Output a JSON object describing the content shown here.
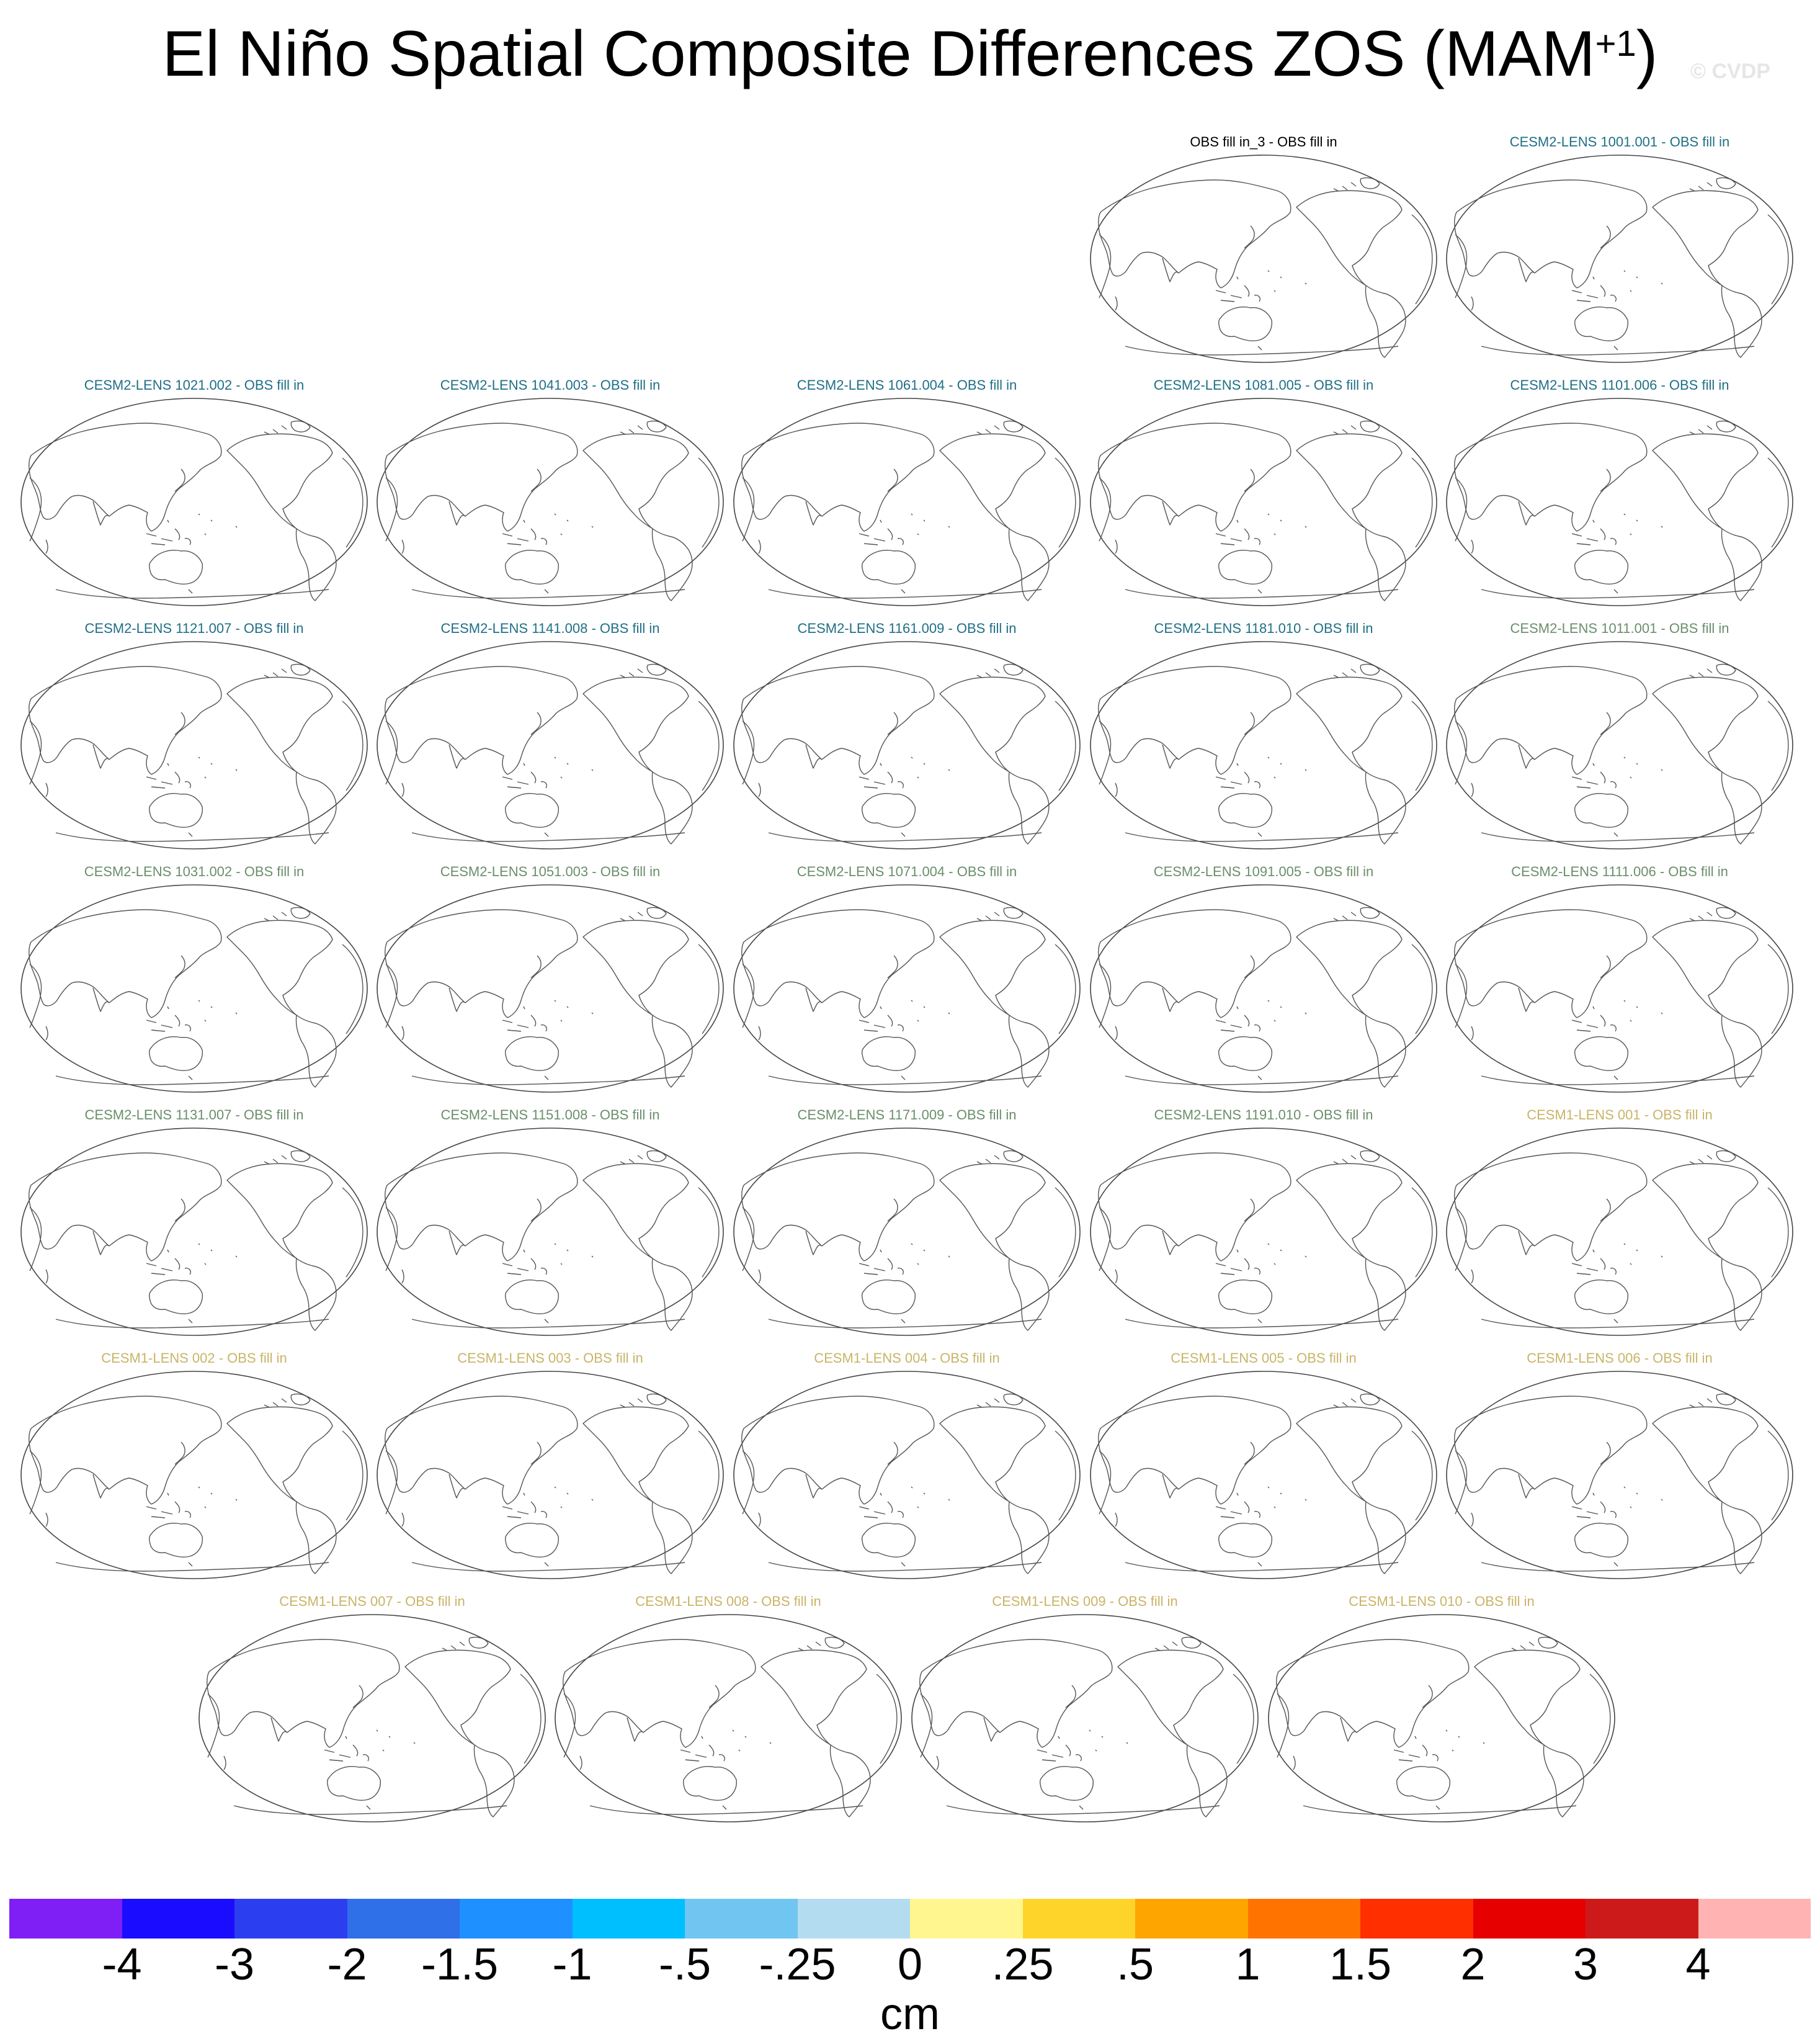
{
  "title": {
    "main": "El Niño Spatial Composite Differences ZOS (MAM",
    "superscript": "+1",
    "close": ")"
  },
  "watermark": "© CVDP",
  "colors": {
    "obs": "#000000",
    "cesm2_lens_a": "#1f6f86",
    "cesm2_lens_b": "#6b8e6b",
    "cesm1_lens": "#c9b468"
  },
  "panels": [
    {
      "title": "OBS fill in_3 - OBS fill in",
      "group": "obs"
    },
    {
      "title": "CESM2-LENS 1001.001 - OBS fill in",
      "group": "cesm2_lens_a"
    },
    {
      "title": "CESM2-LENS 1021.002 - OBS fill in",
      "group": "cesm2_lens_a"
    },
    {
      "title": "CESM2-LENS 1041.003 - OBS fill in",
      "group": "cesm2_lens_a"
    },
    {
      "title": "CESM2-LENS 1061.004 - OBS fill in",
      "group": "cesm2_lens_a"
    },
    {
      "title": "CESM2-LENS 1081.005 - OBS fill in",
      "group": "cesm2_lens_a"
    },
    {
      "title": "CESM2-LENS 1101.006 - OBS fill in",
      "group": "cesm2_lens_a"
    },
    {
      "title": "CESM2-LENS 1121.007 - OBS fill in",
      "group": "cesm2_lens_a"
    },
    {
      "title": "CESM2-LENS 1141.008 - OBS fill in",
      "group": "cesm2_lens_a"
    },
    {
      "title": "CESM2-LENS 1161.009 - OBS fill in",
      "group": "cesm2_lens_a"
    },
    {
      "title": "CESM2-LENS 1181.010 - OBS fill in",
      "group": "cesm2_lens_a"
    },
    {
      "title": "CESM2-LENS 1011.001 - OBS fill in",
      "group": "cesm2_lens_b"
    },
    {
      "title": "CESM2-LENS 1031.002 - OBS fill in",
      "group": "cesm2_lens_b"
    },
    {
      "title": "CESM2-LENS 1051.003 - OBS fill in",
      "group": "cesm2_lens_b"
    },
    {
      "title": "CESM2-LENS 1071.004 - OBS fill in",
      "group": "cesm2_lens_b"
    },
    {
      "title": "CESM2-LENS 1091.005 - OBS fill in",
      "group": "cesm2_lens_b"
    },
    {
      "title": "CESM2-LENS 1111.006 - OBS fill in",
      "group": "cesm2_lens_b"
    },
    {
      "title": "CESM2-LENS 1131.007 - OBS fill in",
      "group": "cesm2_lens_b"
    },
    {
      "title": "CESM2-LENS 1151.008 - OBS fill in",
      "group": "cesm2_lens_b"
    },
    {
      "title": "CESM2-LENS 1171.009 - OBS fill in",
      "group": "cesm2_lens_b"
    },
    {
      "title": "CESM2-LENS 1191.010 - OBS fill in",
      "group": "cesm2_lens_b"
    },
    {
      "title": "CESM1-LENS 001 - OBS fill in",
      "group": "cesm1_lens"
    },
    {
      "title": "CESM1-LENS 002 - OBS fill in",
      "group": "cesm1_lens"
    },
    {
      "title": "CESM1-LENS 003 - OBS fill in",
      "group": "cesm1_lens"
    },
    {
      "title": "CESM1-LENS 004 - OBS fill in",
      "group": "cesm1_lens"
    },
    {
      "title": "CESM1-LENS 005 - OBS fill in",
      "group": "cesm1_lens"
    },
    {
      "title": "CESM1-LENS 006 - OBS fill in",
      "group": "cesm1_lens"
    },
    {
      "title": "CESM1-LENS 007 - OBS fill in",
      "group": "cesm1_lens"
    },
    {
      "title": "CESM1-LENS 008 - OBS fill in",
      "group": "cesm1_lens"
    },
    {
      "title": "CESM1-LENS 009 - OBS fill in",
      "group": "cesm1_lens"
    },
    {
      "title": "CESM1-LENS 010 - OBS fill in",
      "group": "cesm1_lens"
    }
  ],
  "colorbar": {
    "units": "cm",
    "labels": [
      "-4",
      "-3",
      "-2",
      "-1.5",
      "-1",
      "-.5",
      "-.25",
      "0",
      ".25",
      ".5",
      "1",
      "1.5",
      "2",
      "3",
      "4"
    ],
    "colors": [
      "#7f1ef5",
      "#1a0dff",
      "#2c3ff0",
      "#2f6fe8",
      "#1e90ff",
      "#00bfff",
      "#70c6f0",
      "#b3dcf0",
      "#fff68f",
      "#ffd42a",
      "#ffa500",
      "#ff7400",
      "#ff2f00",
      "#e60000",
      "#cc1a1a",
      "#ffb3b3"
    ]
  }
}
